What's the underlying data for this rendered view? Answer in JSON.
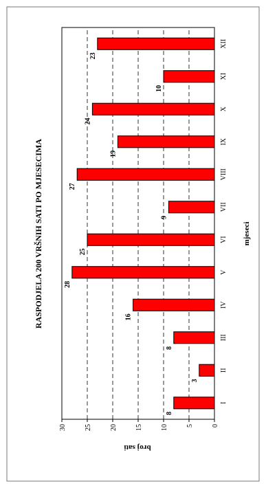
{
  "colors": {
    "bar_fill": "#ff0000",
    "bar_stroke": "#000000",
    "grid": "#000000",
    "background": "#ffffff"
  },
  "chart_data": {
    "type": "bar",
    "orientation": "vertical (page rotated 90 degrees counter-clockwise)",
    "title": "RASPODJELA 200 VRŠNIH SATI PO MJESECIMA",
    "xlabel": "mjeseci",
    "ylabel": "broj sati",
    "categories": [
      "I",
      "II",
      "III",
      "IV",
      "V",
      "VI",
      "VII",
      "VIII",
      "IX",
      "X",
      "XI",
      "XII"
    ],
    "values": [
      8,
      3,
      8,
      16,
      28,
      25,
      9,
      27,
      19,
      24,
      10,
      23
    ],
    "data_labels": [
      "8",
      "3",
      "8",
      "16",
      "28",
      "25",
      "9",
      "27",
      "19",
      "24",
      "10",
      "23"
    ],
    "ylim": [
      0,
      30
    ],
    "yticks": [
      "0",
      "5",
      "10",
      "15",
      "20",
      "25",
      "30"
    ],
    "grid": "dashed horizontal at each tick",
    "legend": "none"
  }
}
